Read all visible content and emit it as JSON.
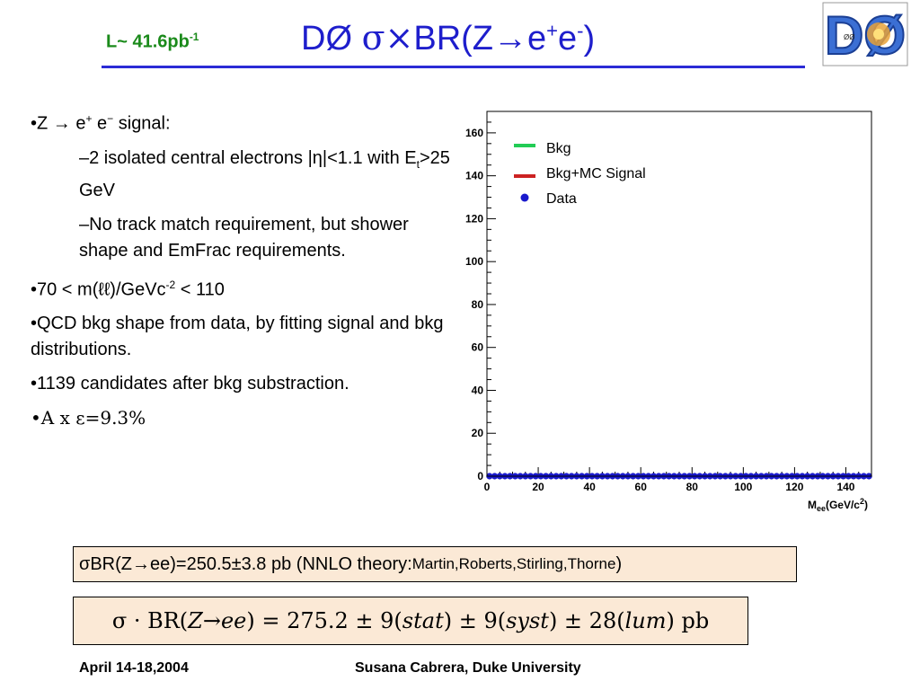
{
  "header": {
    "luminosity": "L~ 41.6pb",
    "luminosity_sup": "-1",
    "title_prefix": "DØ ",
    "title_sym": "σ×",
    "title_mid": "BR(Z→e",
    "title_sup1": "+",
    "title_e": "e",
    "title_sup2": "-",
    "title_end": ")",
    "logo_text": "DØ",
    "logo_small": "ØØ",
    "colors": {
      "title": "#1e1ecc",
      "luminosity": "#1a8a1a",
      "rule": "#2b2bd6"
    }
  },
  "bullets": {
    "b1": "•Z → e",
    "b1_sup1": "+",
    "b1_mid": " e",
    "b1_sup2": "−",
    "b1_end": " signal:",
    "s1_a": "–2 isolated central electrons |η|<1.1 with E",
    "s1_sub": "t",
    "s1_b": ">25 GeV",
    "s2": "–No track match requirement, but shower shape and EmFrac requirements.",
    "b2_a": "•70 < m(ℓℓ)/GeVc",
    "b2_sup": "-2",
    "b2_b": " < 110",
    "b3": "•QCD bkg shape from data, by fitting signal and bkg distributions.",
    "b4": "•1139 candidates after bkg substraction.",
    "b5_a": "•A x ",
    "b5_b": "ε=9.3%"
  },
  "chart_data": {
    "type": "line",
    "title": "",
    "xlabel": "M",
    "xlabel_sub": "ee",
    "xlabel_unit": "(GeV/c",
    "xlabel_unit_sup": "2",
    "xlabel_close": ")",
    "ylabel": "",
    "xlim": [
      0,
      150
    ],
    "ylim": [
      0,
      170
    ],
    "xticks": [
      0,
      20,
      40,
      60,
      80,
      100,
      120,
      140
    ],
    "yticks": [
      0,
      20,
      40,
      60,
      80,
      100,
      120,
      140,
      160
    ],
    "bin_width": 2,
    "x_bin_centers": [
      1,
      3,
      5,
      7,
      9,
      11,
      13,
      15,
      17,
      19,
      21,
      23,
      25,
      27,
      29,
      31,
      33,
      35,
      37,
      39,
      41,
      43,
      45,
      47,
      49,
      51,
      53,
      55,
      57,
      59,
      61,
      63,
      65,
      67,
      69,
      71,
      73,
      75,
      77,
      79,
      81,
      83,
      85,
      87,
      89,
      91,
      93,
      95,
      97,
      99,
      101,
      103,
      105,
      107,
      109,
      111,
      113,
      115,
      117,
      119,
      121,
      123,
      125,
      127,
      129,
      131,
      133,
      135,
      137,
      139,
      141,
      143,
      145,
      147,
      149
    ],
    "series": [
      {
        "name": "Bkg",
        "style": "line",
        "color": "#22cc55",
        "values": [
          0,
          0,
          0,
          0,
          0,
          0,
          0,
          0,
          0,
          0,
          0,
          0,
          0,
          0,
          0,
          0,
          0,
          0,
          0,
          0,
          0,
          0,
          0,
          0,
          0,
          0,
          0,
          0,
          0,
          0,
          0,
          0,
          0,
          0,
          0,
          0,
          0,
          0,
          0,
          0,
          0,
          0,
          0,
          0,
          0,
          0,
          0,
          0,
          0,
          0,
          0,
          0,
          0,
          0,
          0,
          0,
          0,
          0,
          0,
          0,
          0,
          0,
          0,
          0,
          0,
          0,
          0,
          0,
          0,
          0,
          0,
          0,
          0,
          0,
          0
        ]
      },
      {
        "name": "Bkg+MC Signal",
        "style": "line",
        "color": "#cc2222",
        "values": [
          0,
          0,
          0,
          0,
          0,
          0,
          0,
          0,
          0,
          0,
          0,
          0,
          0,
          0,
          0,
          0,
          0,
          0,
          0,
          0,
          0,
          0,
          0,
          0,
          0,
          0,
          0,
          0,
          0,
          0,
          0,
          0,
          0,
          0,
          0,
          0,
          0,
          0,
          0,
          0,
          0,
          0,
          0,
          0,
          0,
          0,
          0,
          0,
          0,
          0,
          0,
          0,
          0,
          0,
          0,
          0,
          0,
          0,
          0,
          0,
          0,
          0,
          0,
          0,
          0,
          0,
          0,
          0,
          0,
          0,
          0,
          0,
          0,
          0,
          0
        ]
      },
      {
        "name": "Data",
        "style": "points",
        "color": "#1a1acc",
        "values": [
          0,
          0,
          0,
          0,
          0,
          0,
          0,
          0,
          0,
          0,
          0,
          0,
          0,
          0,
          0,
          0,
          0,
          0,
          0,
          0,
          0,
          0,
          0,
          0,
          0,
          0,
          0,
          0,
          0,
          0,
          0,
          0,
          0,
          0,
          0,
          0,
          0,
          0,
          0,
          0,
          0,
          0,
          0,
          0,
          0,
          0,
          0,
          0,
          0,
          0,
          0,
          0,
          0,
          0,
          0,
          0,
          0,
          0,
          0,
          0,
          0,
          0,
          0,
          0,
          0,
          0,
          0,
          0,
          0,
          0,
          0,
          0,
          0,
          0,
          0
        ]
      }
    ],
    "legend_placement": "top-right",
    "grid": false
  },
  "results": {
    "box1_a": "σBR(Z→ee)=250.5±3.8 pb (NNLO theory: ",
    "box1_small": "Martin,Roberts,Stirling,Thorne",
    "box1_end": ")",
    "box2_p1": "σ · BR(",
    "box2_Z": "Z",
    "box2_arrow": " → ",
    "box2_ee": "ee",
    "box2_p2": ") = 275.2 ± 9(",
    "box2_stat": "stat",
    "box2_p3": ") ± 9(",
    "box2_syst": "syst",
    "box2_p4": ") ± 28(",
    "box2_lum": "lum",
    "box2_p5": ") pb",
    "box_bg": "#fbe9d6"
  },
  "footer": {
    "date": "April 14-18,2004",
    "author": "Susana Cabrera, Duke University"
  }
}
